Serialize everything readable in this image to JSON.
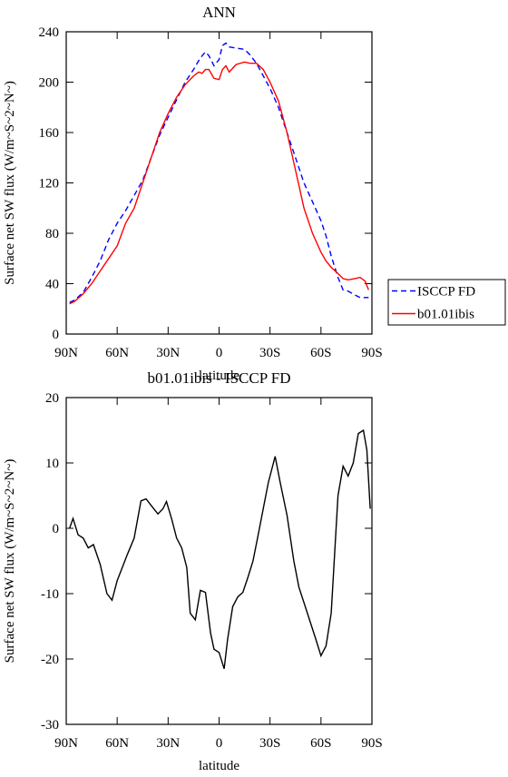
{
  "chart_data": [
    {
      "type": "line",
      "title": "ANN",
      "xlabel": "latitude",
      "ylabel": "Surface net SW flux (W/m~S~2~N~)",
      "x": [
        88,
        85,
        80,
        75,
        70,
        65,
        60,
        55,
        50,
        45,
        40,
        35,
        30,
        25,
        20,
        15,
        12,
        10,
        8,
        6,
        3,
        0,
        -2,
        -4,
        -6,
        -10,
        -15,
        -18,
        -22,
        -26,
        -30,
        -35,
        -40,
        -45,
        -50,
        -55,
        -60,
        -63,
        -66,
        -70,
        -73,
        -76,
        -80,
        -83,
        -86,
        -88
      ],
      "series": [
        {
          "name": "ISCCP FD",
          "color": "#0000ff",
          "line_style": "dashed",
          "values": [
            25,
            27,
            33,
            45,
            58,
            75,
            88,
            98,
            110,
            122,
            140,
            158,
            172,
            186,
            200,
            210,
            217,
            221,
            224,
            221,
            213,
            218,
            229,
            231,
            228,
            227,
            226,
            222,
            215,
            205,
            195,
            180,
            160,
            140,
            120,
            105,
            90,
            78,
            62,
            45,
            35,
            34,
            31,
            29,
            29,
            29
          ]
        },
        {
          "name": "b01.01ibis",
          "color": "#ff0000",
          "line_style": "solid",
          "values": [
            24,
            26,
            32,
            40,
            50,
            60,
            70,
            88,
            100,
            120,
            140,
            160,
            175,
            188,
            198,
            205,
            208,
            207,
            210,
            210,
            203,
            202,
            210,
            213,
            208,
            214,
            216,
            215,
            215,
            210,
            200,
            185,
            160,
            130,
            100,
            80,
            65,
            58,
            53,
            48,
            44,
            43,
            44,
            45,
            42,
            35
          ]
        }
      ],
      "xlim": [
        90,
        -90
      ],
      "xticks": [
        {
          "value": 90,
          "label": "90N"
        },
        {
          "value": 60,
          "label": "60N"
        },
        {
          "value": 30,
          "label": "30N"
        },
        0,
        {
          "value": -30,
          "label": "30S"
        },
        {
          "value": -60,
          "label": "60S"
        },
        {
          "value": -90,
          "label": "90S"
        }
      ],
      "ylim": [
        0,
        240
      ],
      "yticks": [
        0,
        40,
        80,
        120,
        160,
        200,
        240
      ],
      "legend": "right"
    },
    {
      "type": "line",
      "title": "b01.01ibis - ISCCP FD",
      "xlabel": "latitude",
      "ylabel": "Surface net SW flux (W/m~S~2~N~)",
      "x": [
        88,
        86,
        83,
        80,
        77,
        74,
        70,
        66,
        63,
        60,
        57,
        54,
        50,
        46,
        43,
        40,
        36,
        33,
        31,
        28,
        25,
        22,
        19,
        17,
        14,
        11,
        8,
        5,
        3,
        0,
        -3,
        -5,
        -8,
        -11,
        -14,
        -17,
        -20,
        -23,
        -26,
        -29,
        -33,
        -36,
        -40,
        -44,
        -47,
        -52,
        -57,
        -60,
        -63,
        -66,
        -70,
        -73,
        -76,
        -79,
        -82,
        -85,
        -87,
        -89
      ],
      "series": [
        {
          "color": "#000000",
          "line_style": "solid",
          "values": [
            0,
            1.5,
            -1,
            -1.5,
            -3,
            -2.5,
            -5.5,
            -10,
            -11,
            -8,
            -6,
            -4,
            -1.5,
            4.2,
            4.5,
            3.5,
            2.2,
            3,
            4.1,
            1.5,
            -1.5,
            -3,
            -6,
            -13,
            -14,
            -9.5,
            -9.8,
            -16,
            -18.5,
            -19,
            -21.5,
            -17,
            -12,
            -10.5,
            -9.8,
            -7.5,
            -5,
            -1,
            3,
            7,
            11,
            7,
            2,
            -5,
            -9,
            -13,
            -17,
            -19.5,
            -18,
            -13,
            5,
            9.5,
            8,
            10,
            14.5,
            15,
            12,
            3
          ]
        }
      ],
      "xlim": [
        90,
        -90
      ],
      "xticks": [
        {
          "value": 90,
          "label": "90N"
        },
        {
          "value": 60,
          "label": "60N"
        },
        {
          "value": 30,
          "label": "30N"
        },
        0,
        {
          "value": -30,
          "label": "30S"
        },
        {
          "value": -60,
          "label": "60S"
        },
        {
          "value": -90,
          "label": "90S"
        }
      ],
      "ylim": [
        -30,
        20
      ],
      "yticks": [
        -30,
        -20,
        -10,
        0,
        10,
        20
      ]
    }
  ]
}
